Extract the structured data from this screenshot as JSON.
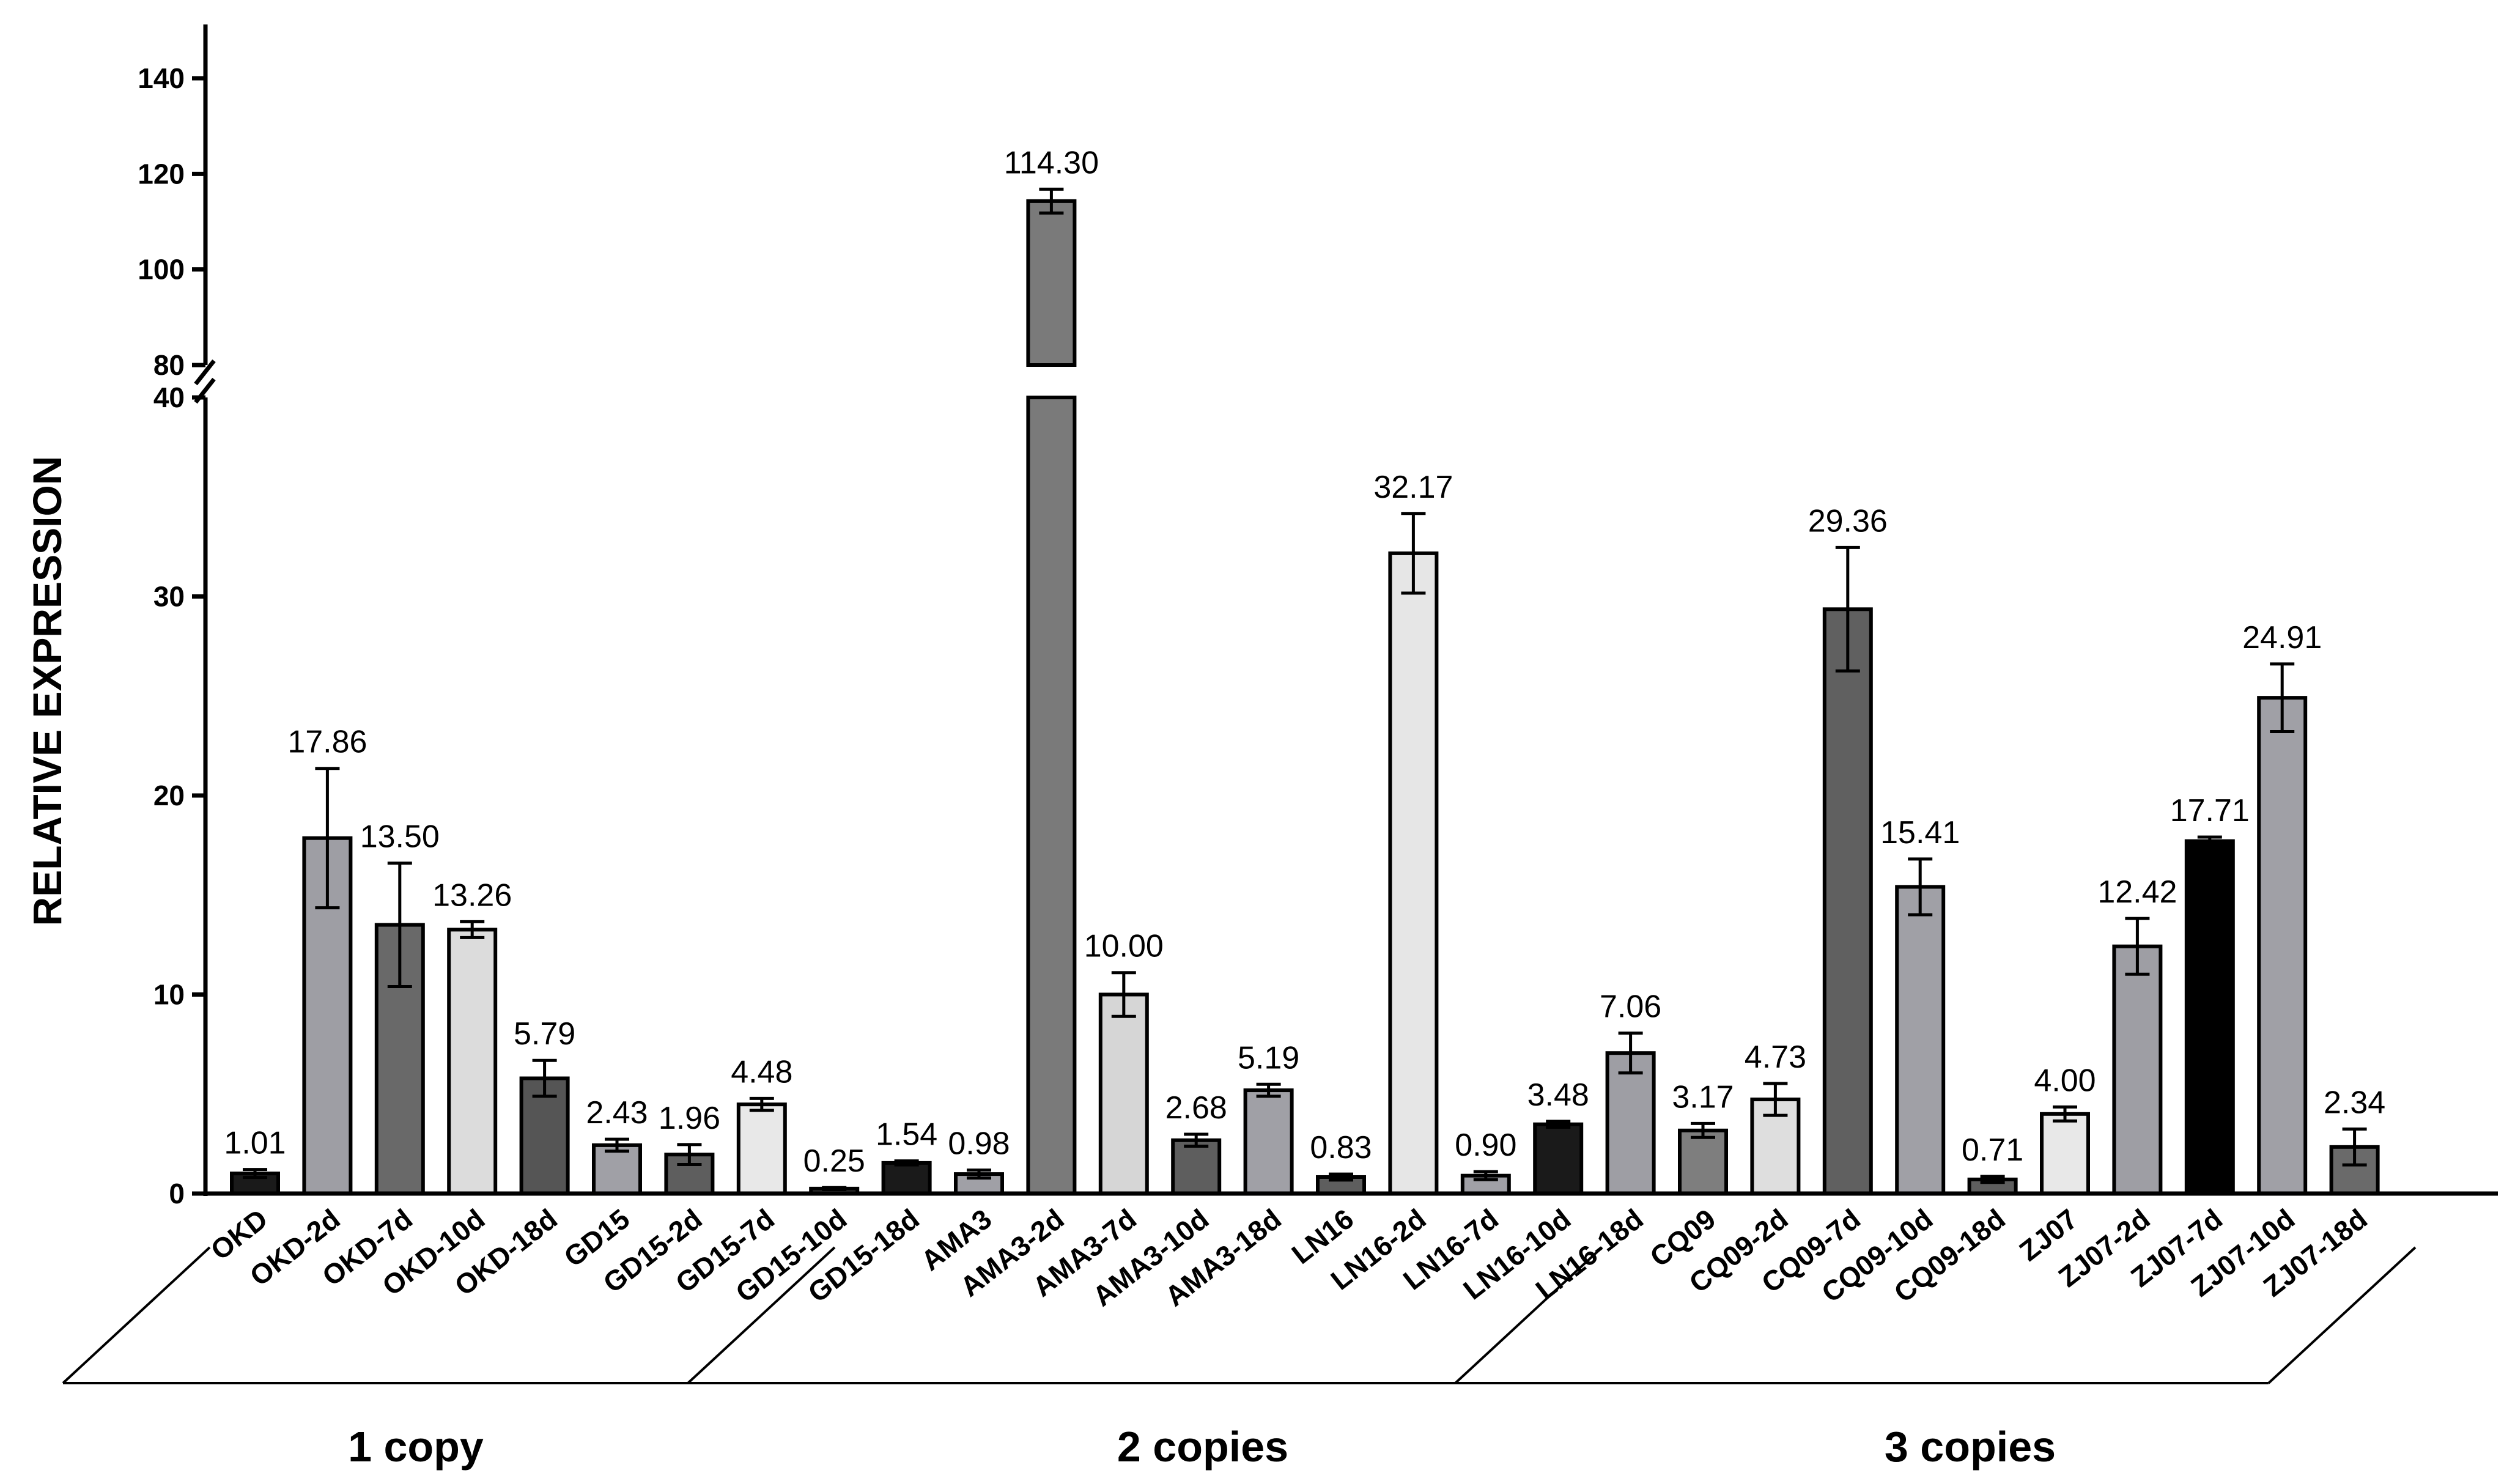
{
  "chart_data": {
    "type": "bar",
    "title": "",
    "xlabel": "",
    "ylabel": "RELATIVE EXPRESSION",
    "y_axis": {
      "broken": true,
      "lower_range": [
        0,
        40
      ],
      "upper_range": [
        80,
        140
      ],
      "lower_ticks": [
        0,
        10,
        20,
        30,
        40
      ],
      "upper_ticks": [
        80,
        100,
        120,
        140
      ]
    },
    "groups": [
      {
        "label": "1 copy",
        "categories": [
          "OKD",
          "OKD-2d",
          "OKD-7d",
          "OKD-10d",
          "OKD-18d",
          "GD15",
          "GD15-2d",
          "GD15-7d",
          "GD15-10d"
        ]
      },
      {
        "label": "2 copies",
        "categories": [
          "GD15-18d",
          "AMA3",
          "AMA3-2d",
          "AMA3-7d",
          "AMA3-10d",
          "AMA3-18d",
          "LN16",
          "LN16-2d",
          "LN16-7d",
          "LN16-10d"
        ]
      },
      {
        "label": "3 copies",
        "categories": [
          "LN16-18d",
          "CQ09",
          "CQ09-2d",
          "CQ09-7d",
          "CQ09-10d",
          "CQ09-18d",
          "ZJ07",
          "ZJ07-2d",
          "ZJ07-7d",
          "ZJ07-10d",
          "ZJ07-18d"
        ]
      }
    ],
    "categories": [
      "OKD",
      "OKD-2d",
      "OKD-7d",
      "OKD-10d",
      "OKD-18d",
      "GD15",
      "GD15-2d",
      "GD15-7d",
      "GD15-10d",
      "GD15-18d",
      "AMA3",
      "AMA3-2d",
      "AMA3-7d",
      "AMA3-10d",
      "AMA3-18d",
      "LN16",
      "LN16-2d",
      "LN16-7d",
      "LN16-10d",
      "LN16-18d",
      "CQ09",
      "CQ09-2d",
      "CQ09-7d",
      "CQ09-10d",
      "CQ09-18d",
      "ZJ07",
      "ZJ07-2d",
      "ZJ07-7d",
      "ZJ07-10d",
      "ZJ07-18d"
    ],
    "values": [
      1.01,
      17.86,
      13.5,
      13.26,
      5.79,
      2.43,
      1.96,
      4.48,
      0.25,
      1.54,
      0.98,
      114.3,
      10.0,
      2.68,
      5.19,
      0.83,
      32.17,
      0.9,
      3.48,
      7.06,
      3.17,
      4.73,
      29.36,
      15.41,
      0.71,
      4.0,
      12.42,
      17.71,
      24.91,
      2.34
    ],
    "value_labels": [
      "1.01",
      "17.86",
      "13.50",
      "13.26",
      "5.79",
      "2.43",
      "1.96",
      "4.48",
      "0.25",
      "1.54",
      "0.98",
      "114.30",
      "10.00",
      "2.68",
      "5.19",
      "0.83",
      "32.17",
      "0.90",
      "3.48",
      "7.06",
      "3.17",
      "4.73",
      "29.36",
      "15.41",
      "0.71",
      "4.00",
      "12.42",
      "17.71",
      "24.91",
      "2.34"
    ],
    "errors": [
      0.2,
      3.5,
      3.1,
      0.4,
      0.9,
      0.3,
      0.5,
      0.3,
      0.05,
      0.1,
      0.2,
      2.5,
      1.1,
      0.3,
      0.3,
      0.15,
      2.0,
      0.2,
      0.15,
      1.0,
      0.35,
      0.8,
      3.1,
      1.4,
      0.15,
      0.35,
      1.4,
      0.2,
      1.7,
      0.9
    ],
    "colors": [
      "#1a1a1a",
      "#9e9ea4",
      "#696969",
      "#dcdcdc",
      "#555555",
      "#a0a0a6",
      "#5e5e5e",
      "#e8e8e8",
      "#3a3a3a",
      "#1a1a1a",
      "#a0a0a6",
      "#7a7a7a",
      "#d6d6d6",
      "#5e5e5e",
      "#a0a0a6",
      "#5e5e5e",
      "#e6e6e6",
      "#a0a0a6",
      "#1a1a1a",
      "#9e9ea4",
      "#7e7e7e",
      "#dedede",
      "#606060",
      "#a0a0a6",
      "#5e5e5e",
      "#e8e8e8",
      "#9e9ea4",
      "#000000",
      "#a0a0a6",
      "#6a6a6a"
    ]
  }
}
